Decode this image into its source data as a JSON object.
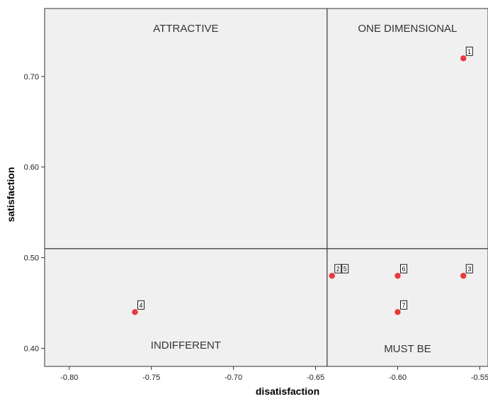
{
  "chart_data": {
    "type": "scatter",
    "xlabel": "disatisfaction",
    "ylabel": "satisfaction",
    "xlim": [
      -0.815,
      -0.545
    ],
    "ylim": [
      0.38,
      0.775
    ],
    "x_ticks": [
      -0.8,
      -0.75,
      -0.7,
      -0.65,
      -0.6,
      -0.55
    ],
    "x_tick_labels": [
      "-0.80",
      "-0.75",
      "-0.70",
      "-0.65",
      "-0.60",
      "-0.55"
    ],
    "y_ticks": [
      0.4,
      0.5,
      0.6,
      0.7
    ],
    "y_tick_labels": [
      "0.40",
      "0.50",
      "0.60",
      "0.70"
    ],
    "reference_lines": {
      "x": -0.643,
      "y": 0.51
    },
    "quadrant_labels": {
      "top_left": "ATTRACTIVE",
      "top_right": "ONE DIMENSIONAL",
      "bottom_left": "INDIFFERENT",
      "bottom_right": "MUST BE"
    },
    "points": [
      {
        "label": "1",
        "x": -0.56,
        "y": 0.72
      },
      {
        "label": "2",
        "x": -0.64,
        "y": 0.48
      },
      {
        "label": "3",
        "x": -0.56,
        "y": 0.48
      },
      {
        "label": "4",
        "x": -0.76,
        "y": 0.44
      },
      {
        "label": "5",
        "x": -0.64,
        "y": 0.48
      },
      {
        "label": "6",
        "x": -0.6,
        "y": 0.48
      },
      {
        "label": "7",
        "x": -0.6,
        "y": 0.44
      }
    ],
    "grid": false,
    "colors": {
      "plot_bg": "#f0f0f0",
      "marker": "#e8393d",
      "line": "#444444"
    }
  }
}
